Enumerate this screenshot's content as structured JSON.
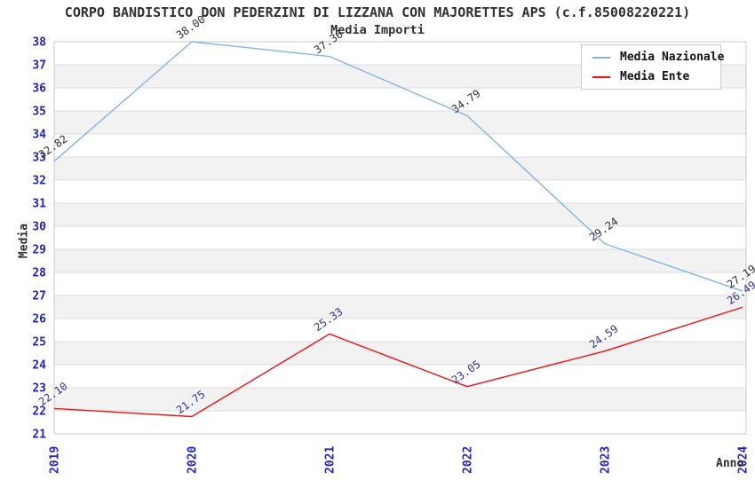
{
  "window": {
    "kind": "statistics-line-chart"
  },
  "chart_data": {
    "type": "line",
    "title": "CORPO BANDISTICO DON PEDERZINI DI LIZZANA CON MAJORETTES APS (c.f.85008220221)",
    "subtitle": "Media Importi",
    "xlabel": "Anno",
    "ylabel": "Media",
    "categories": [
      "2019",
      "2020",
      "2021",
      "2022",
      "2023",
      "2024"
    ],
    "ylim": [
      21,
      38
    ],
    "y_tick_step": 1,
    "grid": "horizontal",
    "legend_position": "top-right",
    "series": [
      {
        "name": "Media Nazionale",
        "color": "#85B4E4",
        "label_color": "#303030",
        "values": [
          32.82,
          38.0,
          37.36,
          34.79,
          29.24,
          27.19
        ],
        "point_labels": [
          "32.82",
          "38.00",
          "37.36",
          "34.79",
          "29.24",
          "27.19"
        ]
      },
      {
        "name": "Media Ente",
        "color": "#EE1111",
        "label_color": "#333399",
        "values": [
          22.1,
          21.75,
          25.33,
          23.05,
          24.59,
          26.49
        ],
        "point_labels": [
          "22.10",
          "21.75",
          "25.33",
          "23.05",
          "24.59",
          "26.49"
        ]
      }
    ]
  },
  "palette": {
    "axis_tick_color": "#2222CC",
    "grid_line_color": "#DCDCDC",
    "band_fill_color": "#F2F2F2",
    "plot_border_color": "#C8C8C8",
    "title_color": "#303030",
    "background": "#FFFFFF"
  }
}
